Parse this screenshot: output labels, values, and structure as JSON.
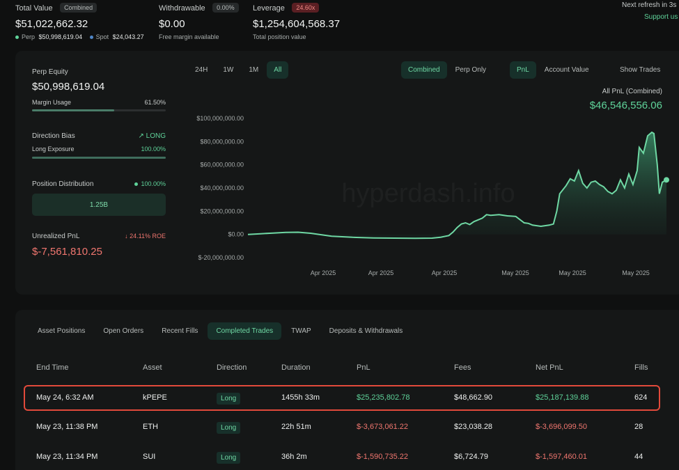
{
  "top": {
    "total_value_label": "Total Value",
    "total_value_badge": "Combined",
    "total_value": "$51,022,662.32",
    "perp_label": "Perp",
    "perp_value": "$50,998,619.04",
    "spot_label": "Spot",
    "spot_value": "$24,043.27",
    "withdrawable_label": "Withdrawable",
    "withdrawable_badge": "0.00%",
    "withdrawable_value": "$0.00",
    "withdrawable_sub": "Free margin available",
    "leverage_label": "Leverage",
    "leverage_badge": "24.60x",
    "leverage_value": "$1,254,604,568.37",
    "leverage_sub": "Total position value",
    "next_refresh": "Next refresh in 3s",
    "support": "Support us"
  },
  "left": {
    "perp_equity_label": "Perp Equity",
    "perp_equity_value": "$50,998,619.04",
    "margin_usage_label": "Margin Usage",
    "margin_usage_value": "61.50%",
    "margin_usage_fraction": 0.615,
    "direction_bias_label": "Direction Bias",
    "direction_bias_value": "LONG",
    "long_exposure_label": "Long Exposure",
    "long_exposure_value": "100.00%",
    "long_exposure_fraction": 1.0,
    "position_dist_label": "Position Distribution",
    "position_dist_value": "100.00%",
    "position_dist_bar": "1.25B",
    "unrealized_label": "Unrealized PnL",
    "roe_value": "24.11% ROE",
    "unrealized_value": "$-7,561,810.25"
  },
  "chart_controls": {
    "ranges": [
      "24H",
      "1W",
      "1M",
      "All"
    ],
    "active_range": "All",
    "modes": [
      "Combined",
      "Perp Only"
    ],
    "active_mode": "Combined",
    "metrics": [
      "PnL",
      "Account Value"
    ],
    "active_metric": "PnL",
    "show_trades": "Show Trades"
  },
  "chart_data": {
    "type": "area",
    "title": "All PnL (Combined)",
    "headline_value": "$46,546,556.06",
    "watermark": "hyperdash.info",
    "y_ticks": [
      "$100,000,000.00",
      "$80,000,000.00",
      "$60,000,000.00",
      "$40,000,000.00",
      "$20,000,000.00",
      "$0.00",
      "$-20,000,000.00"
    ],
    "x_ticks": [
      "Apr 2025",
      "Apr 2025",
      "Apr 2025",
      "May 2025",
      "May 2025",
      "May 2025"
    ],
    "ylim": [
      -20000000,
      100000000
    ],
    "color": "#5fd39a",
    "points": [
      [
        0,
        0
      ],
      [
        3,
        600000
      ],
      [
        6,
        1200000
      ],
      [
        9,
        1700000
      ],
      [
        12,
        1900000
      ],
      [
        15,
        1000000
      ],
      [
        20,
        -1500000
      ],
      [
        25,
        -2500000
      ],
      [
        30,
        -3000000
      ],
      [
        35,
        -3200000
      ],
      [
        40,
        -3300000
      ],
      [
        44,
        -3200000
      ],
      [
        46,
        -2500000
      ],
      [
        48,
        -1000000
      ],
      [
        49,
        2000000
      ],
      [
        50,
        6000000
      ],
      [
        51,
        9000000
      ],
      [
        52,
        10000000
      ],
      [
        53,
        8500000
      ],
      [
        54,
        11000000
      ],
      [
        56,
        14000000
      ],
      [
        57,
        17000000
      ],
      [
        58,
        16500000
      ],
      [
        60,
        17000000
      ],
      [
        62,
        16000000
      ],
      [
        64,
        15500000
      ],
      [
        66,
        10000000
      ],
      [
        67,
        9500000
      ],
      [
        68,
        8000000
      ],
      [
        70,
        7000000
      ],
      [
        72,
        8000000
      ],
      [
        73,
        9000000
      ],
      [
        73.8,
        20000000
      ],
      [
        74.5,
        35000000
      ],
      [
        76,
        42000000
      ],
      [
        77,
        48000000
      ],
      [
        78,
        46000000
      ],
      [
        79,
        55000000
      ],
      [
        80,
        44000000
      ],
      [
        81,
        40000000
      ],
      [
        82,
        45000000
      ],
      [
        83,
        46000000
      ],
      [
        84,
        43000000
      ],
      [
        85,
        41000000
      ],
      [
        86,
        37000000
      ],
      [
        87,
        35000000
      ],
      [
        88,
        38000000
      ],
      [
        89,
        47000000
      ],
      [
        90,
        40000000
      ],
      [
        91,
        52000000
      ],
      [
        92,
        43000000
      ],
      [
        93,
        55000000
      ],
      [
        93.5,
        75000000
      ],
      [
        94.5,
        70000000
      ],
      [
        95.5,
        85000000
      ],
      [
        96.5,
        88000000
      ],
      [
        97,
        87000000
      ],
      [
        97.8,
        60000000
      ],
      [
        98.3,
        35000000
      ],
      [
        99,
        45000000
      ],
      [
        100,
        47000000
      ]
    ]
  },
  "tabs": [
    "Asset Positions",
    "Open Orders",
    "Recent Fills",
    "Completed Trades",
    "TWAP",
    "Deposits & Withdrawals"
  ],
  "active_tab": "Completed Trades",
  "table": {
    "columns": [
      "End Time",
      "Asset",
      "Direction",
      "Duration",
      "PnL",
      "Fees",
      "Net PnL",
      "Fills"
    ],
    "rows": [
      {
        "end_time": "May 24, 6:32 AM",
        "asset": "kPEPE",
        "direction": "Long",
        "duration": "1455h 33m",
        "pnl": "$25,235,802.78",
        "fees": "$48,662.90",
        "net_pnl": "$25,187,139.88",
        "fills": "624",
        "positive": true
      },
      {
        "end_time": "May 23, 11:38 PM",
        "asset": "ETH",
        "direction": "Long",
        "duration": "22h 51m",
        "pnl": "$-3,673,061.22",
        "fees": "$23,038.28",
        "net_pnl": "$-3,696,099.50",
        "fills": "28",
        "positive": false
      },
      {
        "end_time": "May 23, 11:34 PM",
        "asset": "SUI",
        "direction": "Long",
        "duration": "36h 2m",
        "pnl": "$-1,590,735.22",
        "fees": "$6,724.79",
        "net_pnl": "$-1,597,460.01",
        "fills": "44",
        "positive": false
      }
    ]
  }
}
